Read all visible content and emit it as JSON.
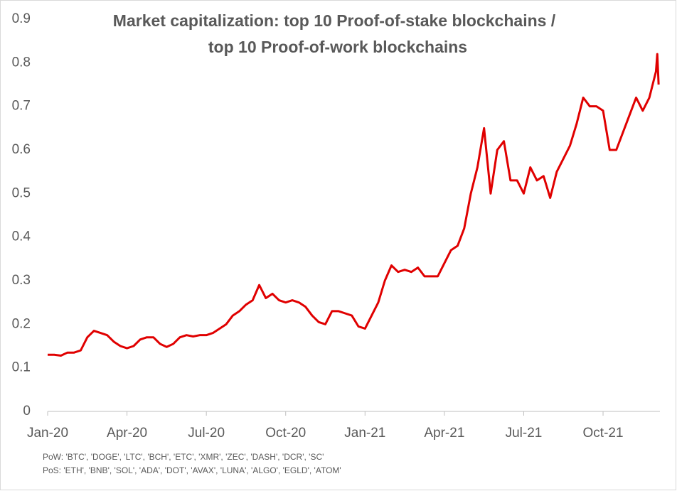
{
  "chart_data": {
    "type": "line",
    "title": [
      "Market capitalization: top 10 Proof-of-stake blockchains /",
      "top 10 Proof-of-work blockchains"
    ],
    "notes": [
      "PoW: 'BTC', 'DOGE', 'LTC', 'BCH', 'ETC', 'XMR', 'ZEC', 'DASH', 'DCR', 'SC'",
      "PoS: 'ETH', 'BNB', 'SOL', 'ADA', 'DOT', 'AVAX', 'LUNA', 'ALGO', 'EGLD', 'ATOM'"
    ],
    "xlim": [
      0,
      23.15
    ],
    "xticks": [
      {
        "value": 0,
        "label": "Jan-20"
      },
      {
        "value": 3,
        "label": "Apr-20"
      },
      {
        "value": 6,
        "label": "Jul-20"
      },
      {
        "value": 9,
        "label": "Oct-20"
      },
      {
        "value": 12,
        "label": "Jan-21"
      },
      {
        "value": 15,
        "label": "Apr-21"
      },
      {
        "value": 18,
        "label": "Jul-21"
      },
      {
        "value": 21,
        "label": "Oct-21"
      }
    ],
    "ylim": [
      0,
      0.9
    ],
    "yticks": [
      0,
      0.1,
      0.2,
      0.3,
      0.4,
      0.5,
      0.6,
      0.7,
      0.8,
      0.9
    ],
    "grid": false,
    "series": [
      {
        "color": "#e00000",
        "x": [
          0,
          0.25,
          0.5,
          0.75,
          1,
          1.25,
          1.5,
          1.75,
          2,
          2.25,
          2.5,
          2.75,
          3,
          3.25,
          3.5,
          3.75,
          4,
          4.25,
          4.5,
          4.75,
          5,
          5.25,
          5.5,
          5.75,
          6,
          6.25,
          6.5,
          6.75,
          7,
          7.25,
          7.5,
          7.75,
          8,
          8.25,
          8.5,
          8.75,
          9,
          9.25,
          9.5,
          9.75,
          10,
          10.25,
          10.5,
          10.75,
          11,
          11.25,
          11.5,
          11.75,
          12,
          12.25,
          12.5,
          12.75,
          13,
          13.25,
          13.5,
          13.75,
          14,
          14.25,
          14.5,
          14.75,
          15,
          15.25,
          15.5,
          15.75,
          16,
          16.25,
          16.5,
          16.75,
          17,
          17.25,
          17.5,
          17.75,
          18,
          18.25,
          18.5,
          18.75,
          19,
          19.25,
          19.5,
          19.75,
          20,
          20.25,
          20.5,
          20.75,
          21,
          21.25,
          21.5,
          21.75,
          22,
          22.25,
          22.5,
          22.75,
          23,
          23.05,
          23.1
        ],
        "values": [
          0.13,
          0.13,
          0.128,
          0.135,
          0.135,
          0.14,
          0.17,
          0.185,
          0.18,
          0.175,
          0.16,
          0.15,
          0.145,
          0.15,
          0.165,
          0.17,
          0.17,
          0.155,
          0.148,
          0.155,
          0.17,
          0.175,
          0.172,
          0.175,
          0.175,
          0.18,
          0.19,
          0.2,
          0.22,
          0.23,
          0.245,
          0.255,
          0.29,
          0.26,
          0.27,
          0.255,
          0.25,
          0.255,
          0.25,
          0.24,
          0.22,
          0.205,
          0.2,
          0.23,
          0.23,
          0.225,
          0.22,
          0.195,
          0.19,
          0.22,
          0.25,
          0.3,
          0.335,
          0.32,
          0.325,
          0.32,
          0.33,
          0.31,
          0.31,
          0.31,
          0.34,
          0.37,
          0.38,
          0.42,
          0.5,
          0.56,
          0.65,
          0.5,
          0.6,
          0.62,
          0.53,
          0.53,
          0.5,
          0.56,
          0.53,
          0.54,
          0.49,
          0.55,
          0.58,
          0.61,
          0.66,
          0.72,
          0.7,
          0.7,
          0.69,
          0.6,
          0.6,
          0.64,
          0.68,
          0.72,
          0.69,
          0.72,
          0.78,
          0.82,
          0.75
        ]
      }
    ]
  }
}
